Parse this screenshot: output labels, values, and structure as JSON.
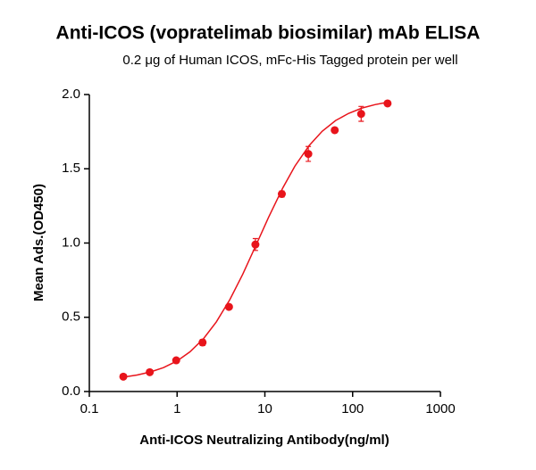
{
  "chart_data": {
    "type": "scatter",
    "title": "Anti-ICOS (vopratelimab biosimilar) mAb ELISA",
    "subtitle": "0.2 μg of Human ICOS, mFc-His Tagged protein per well",
    "x_label": "Anti-ICOS Neutralizing Antibody(ng/ml)",
    "y_label": "Mean Ads.(OD450)",
    "x_scale": "log",
    "color": "#e8141b",
    "x": [
      0.244,
      0.488,
      0.977,
      1.95,
      3.9,
      7.8,
      15.6,
      31.25,
      62.5,
      125,
      250
    ],
    "values": [
      0.1,
      0.13,
      0.21,
      0.33,
      0.57,
      0.99,
      1.33,
      1.6,
      1.76,
      1.87,
      1.94
    ],
    "errors": [
      0.01,
      0.01,
      0.01,
      0.02,
      0.01,
      0.04,
      0.02,
      0.05,
      0.01,
      0.05,
      0.01
    ],
    "fit": {
      "x": [
        0.244,
        0.35,
        0.5,
        0.7,
        1,
        1.4,
        2,
        2.8,
        4,
        5.6,
        8,
        11,
        16,
        22,
        32,
        45,
        64,
        90,
        128,
        180,
        250
      ],
      "values": [
        0.097,
        0.111,
        0.132,
        0.161,
        0.206,
        0.267,
        0.356,
        0.469,
        0.62,
        0.79,
        0.991,
        1.172,
        1.371,
        1.518,
        1.657,
        1.753,
        1.825,
        1.873,
        1.909,
        1.932,
        1.948
      ]
    },
    "xlim": [
      0.1,
      1000
    ],
    "xticks": [
      0.1,
      1,
      10,
      100,
      1000
    ],
    "ylim": [
      0,
      2
    ],
    "yticks": [
      {
        "value": 0,
        "label": "0.0"
      },
      {
        "value": 0.5,
        "label": "0.5"
      },
      {
        "value": 1,
        "label": "1.0"
      },
      {
        "value": 1.5,
        "label": "1.5"
      },
      {
        "value": 2,
        "label": "2.0"
      }
    ]
  }
}
